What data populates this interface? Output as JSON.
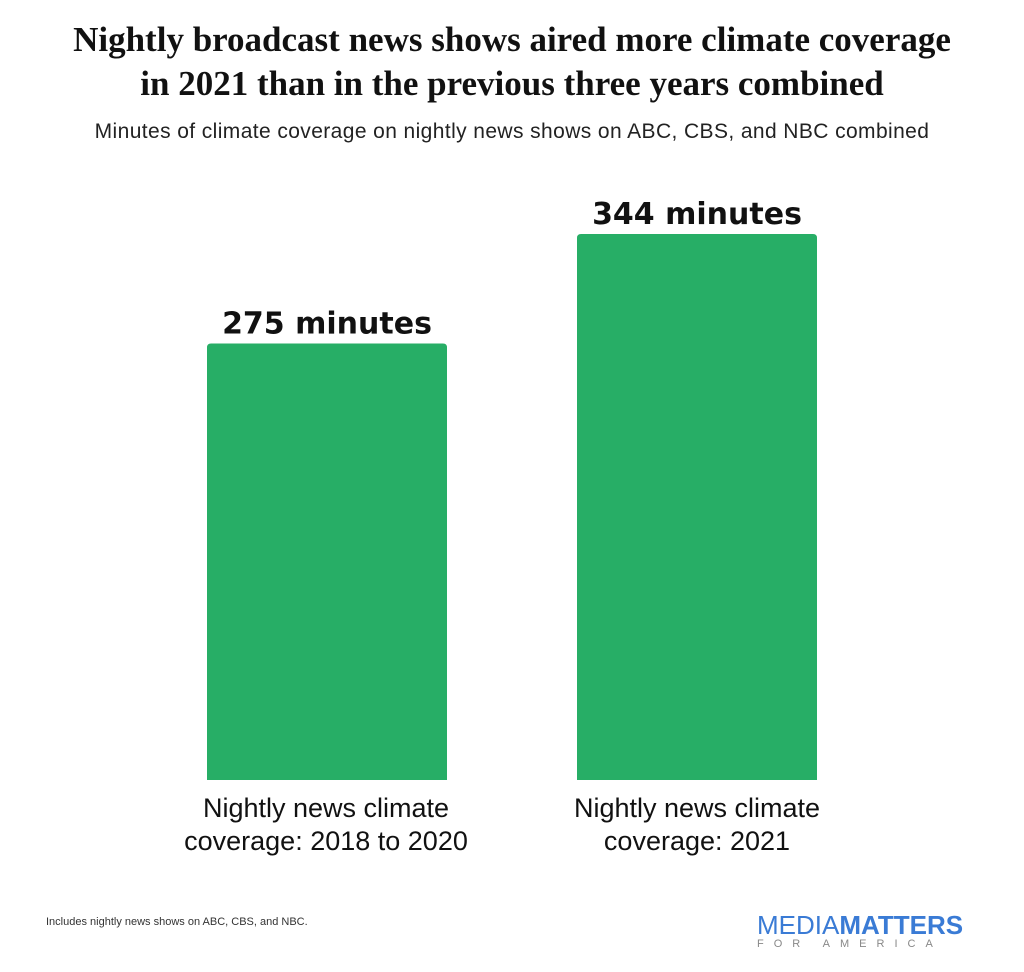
{
  "chart_data": {
    "type": "bar",
    "title": "Nightly broadcast news shows aired more climate coverage in 2021 than in the previous three years combined",
    "title_lines": [
      "Nightly broadcast news shows aired more climate coverage",
      "in 2021 than in the previous three years combined"
    ],
    "subtitle": "Minutes of climate coverage on nightly news shows on ABC, CBS, and NBC combined",
    "categories": [
      "Nightly news climate coverage: 2018 to 2020",
      "Nightly news climate coverage: 2021"
    ],
    "values": [
      275,
      344
    ],
    "data_labels": [
      "275 minutes",
      "344 minutes"
    ],
    "xlabel": "",
    "ylabel": "",
    "ylim": [
      0,
      344
    ],
    "grid": false,
    "bar_color": "#27ae66"
  },
  "footnote": "Includes nightly news shows on ABC, CBS, and NBC.",
  "logo": {
    "part1": "MEDIA",
    "part2": "MATTERS",
    "part3": "FOR AMERICA"
  }
}
